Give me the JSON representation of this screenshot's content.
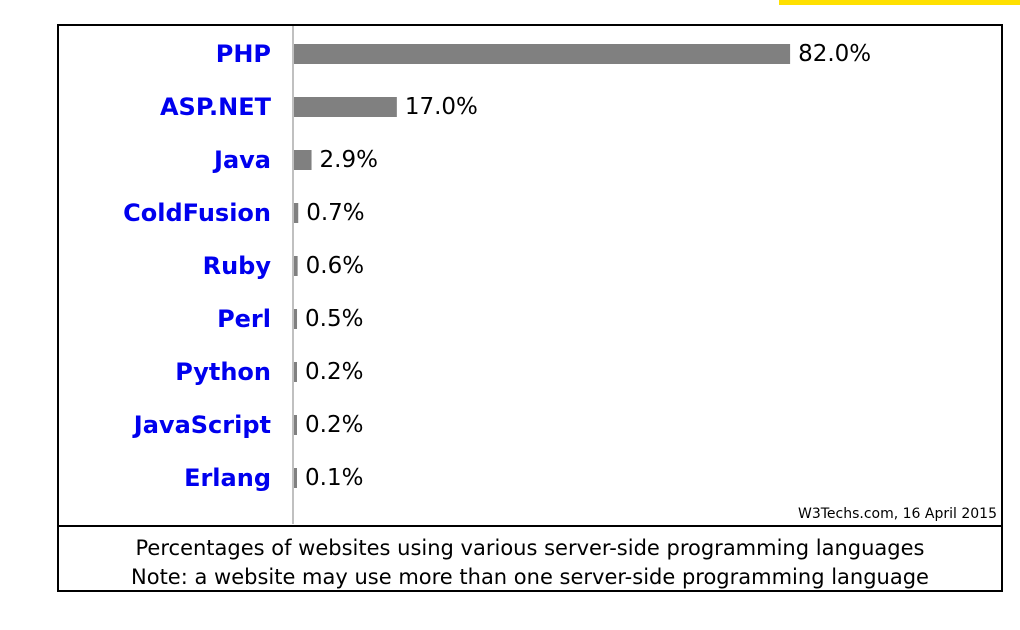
{
  "colors": {
    "accent": "#ffe000",
    "bar": "#808080",
    "label": "#0000ee",
    "text": "#000000"
  },
  "chart_data": {
    "type": "bar",
    "orientation": "horizontal",
    "categories": [
      "PHP",
      "ASP.NET",
      "Java",
      "ColdFusion",
      "Ruby",
      "Perl",
      "Python",
      "JavaScript",
      "Erlang"
    ],
    "values": [
      82.0,
      17.0,
      2.9,
      0.7,
      0.6,
      0.5,
      0.2,
      0.2,
      0.1
    ],
    "value_labels": [
      "82.0%",
      "17.0%",
      "2.9%",
      "0.7%",
      "0.6%",
      "0.5%",
      "0.2%",
      "0.2%",
      "0.1%"
    ],
    "title": "",
    "xlabel": "",
    "ylabel": "",
    "xlim": [
      0,
      100
    ],
    "grid": false,
    "legend": "none",
    "source": "W3Techs.com, 16 April 2015",
    "caption": [
      "Percentages of websites using various server-side programming languages",
      "Note: a website may use more than one server-side programming language"
    ]
  }
}
